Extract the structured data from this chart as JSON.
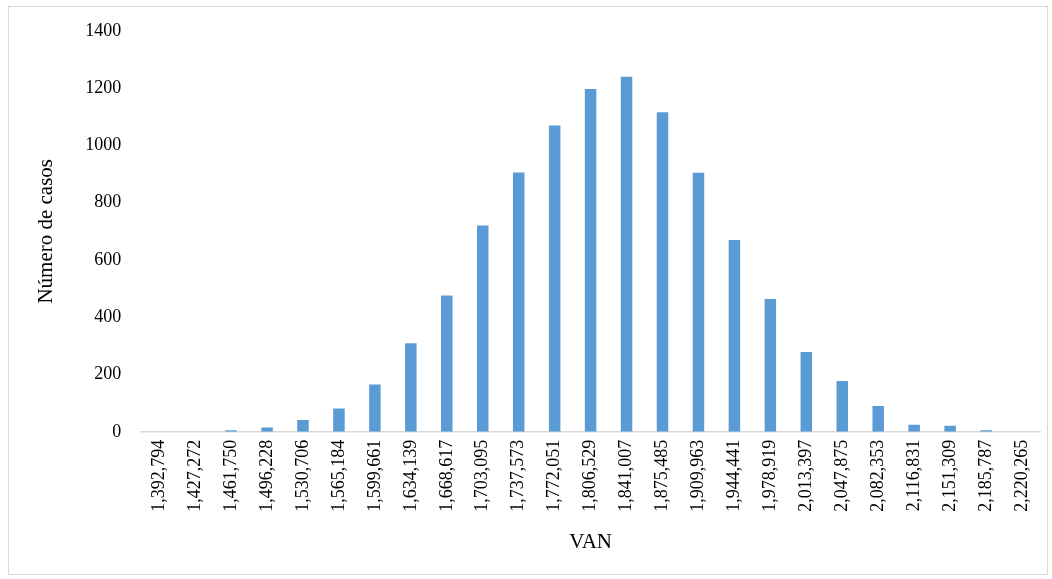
{
  "chart_data": {
    "type": "bar",
    "xlabel": "VAN",
    "ylabel": "Número de casos",
    "categories": [
      "1,392,794",
      "1,427,272",
      "1,461,750",
      "1,496,228",
      "1,530,706",
      "1,565,184",
      "1,599,661",
      "1,634,139",
      "1,668,617",
      "1,703,095",
      "1,737,573",
      "1,772,051",
      "1,806,529",
      "1,841,007",
      "1,875,485",
      "1,909,963",
      "1,944,441",
      "1,978,919",
      "2,013,397",
      "2,047,875",
      "2,082,353",
      "2,116,831",
      "2,151,309",
      "2,185,787",
      "2,220,265"
    ],
    "values": [
      0,
      0,
      5,
      15,
      41,
      81,
      165,
      309,
      476,
      720,
      905,
      1069,
      1197,
      1240,
      1116,
      904,
      670,
      464,
      279,
      177,
      90,
      25,
      21,
      5,
      null
    ],
    "color": "#5b9bd5",
    "ylim": [
      0,
      1400
    ],
    "yticks": [
      0,
      200,
      400,
      600,
      800,
      1000,
      1200,
      1400
    ],
    "grid": false,
    "legend": false
  }
}
